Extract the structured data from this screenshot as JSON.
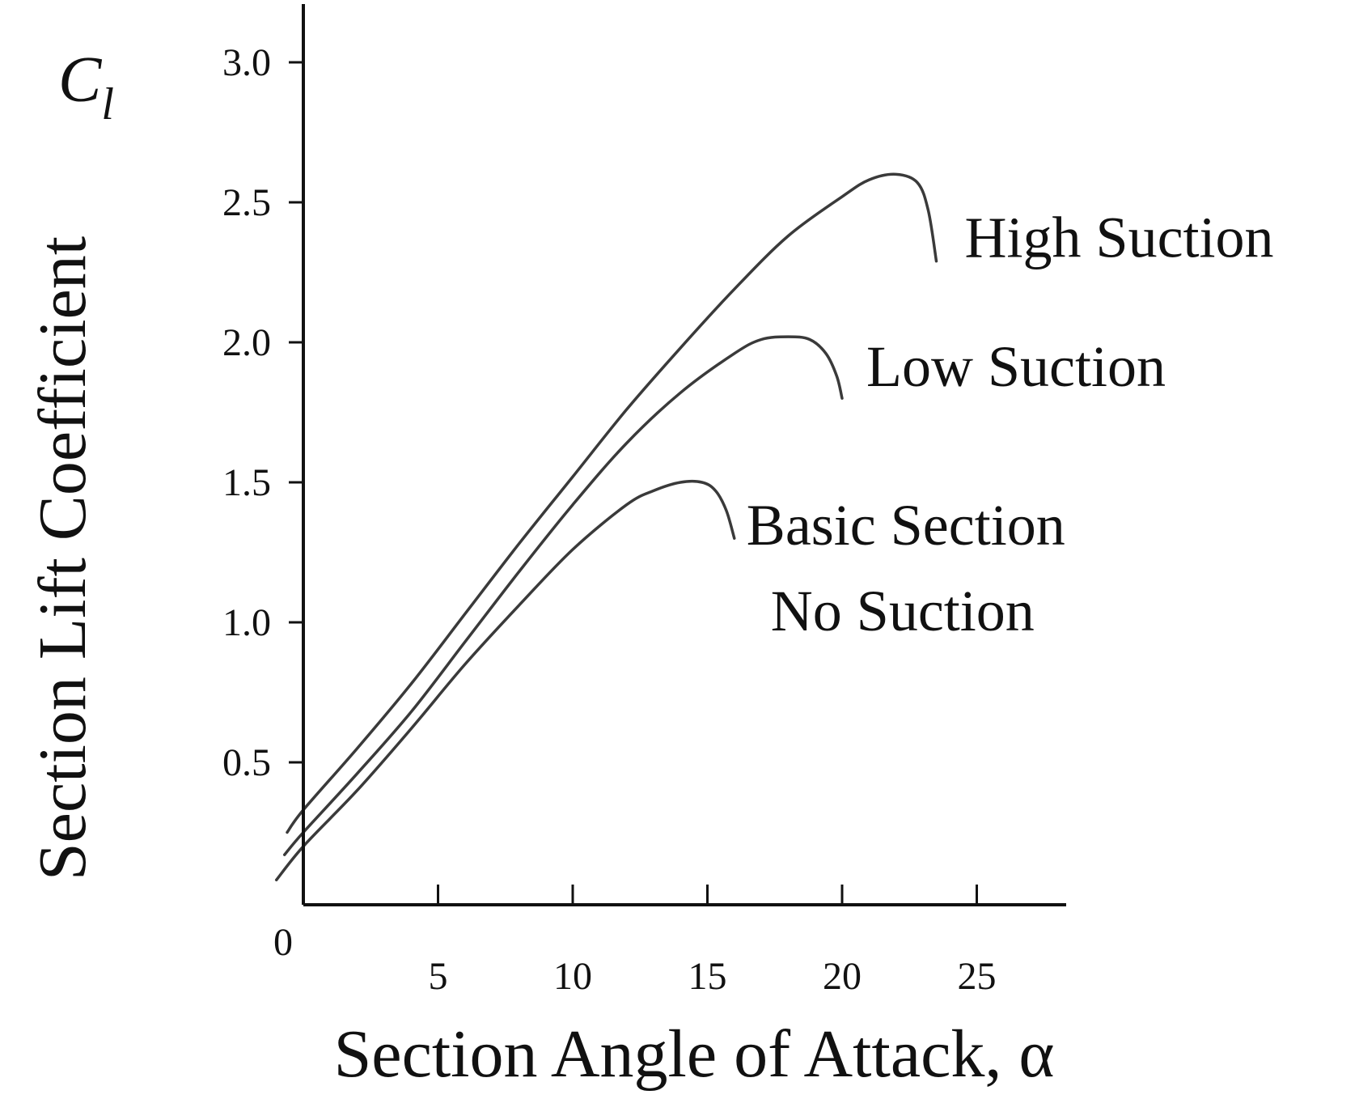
{
  "chart_data": {
    "type": "line",
    "title": "",
    "xlabel": "Section Angle of Attack, α",
    "ylabel": "Section Lift Coefficient",
    "y_symbol": "C",
    "y_symbol_sub": "l",
    "xlim": [
      0,
      28
    ],
    "ylim": [
      0,
      3.2
    ],
    "x_ticks": [
      5,
      10,
      15,
      20,
      25
    ],
    "x_tick_labels": [
      "5",
      "10",
      "15",
      "20",
      "25"
    ],
    "x_origin_label": "0",
    "y_ticks": [
      0.5,
      1.0,
      1.5,
      2.0,
      2.5,
      3.0
    ],
    "y_tick_labels": [
      "0.5",
      "1.0",
      "1.5",
      "2.0",
      "2.5",
      "3.0"
    ],
    "grid": false,
    "line_color": "#3a3a3a",
    "series": [
      {
        "name": "High Suction",
        "x": [
          -0.6,
          0,
          2,
          4,
          6,
          8,
          10,
          12,
          14,
          16,
          18,
          20,
          21,
          22,
          22.8,
          23.2,
          23.5
        ],
        "y": [
          0.25,
          0.33,
          0.55,
          0.78,
          1.03,
          1.28,
          1.52,
          1.76,
          1.98,
          2.19,
          2.38,
          2.52,
          2.58,
          2.6,
          2.57,
          2.47,
          2.29
        ]
      },
      {
        "name": "Low Suction",
        "x": [
          -0.7,
          0,
          2,
          4,
          6,
          8,
          10,
          12,
          14,
          16,
          17,
          18,
          18.8,
          19.4,
          19.8,
          20
        ],
        "y": [
          0.17,
          0.25,
          0.46,
          0.68,
          0.93,
          1.18,
          1.42,
          1.64,
          1.82,
          1.96,
          2.01,
          2.02,
          2.01,
          1.96,
          1.88,
          1.8
        ]
      },
      {
        "name": "Basic Section\nNo Suction",
        "x": [
          -1.0,
          0,
          2,
          4,
          6,
          8,
          10,
          12,
          13,
          14,
          14.8,
          15.3,
          15.7,
          16
        ],
        "y": [
          0.08,
          0.2,
          0.4,
          0.62,
          0.85,
          1.06,
          1.26,
          1.42,
          1.47,
          1.5,
          1.5,
          1.47,
          1.4,
          1.3
        ]
      }
    ]
  }
}
